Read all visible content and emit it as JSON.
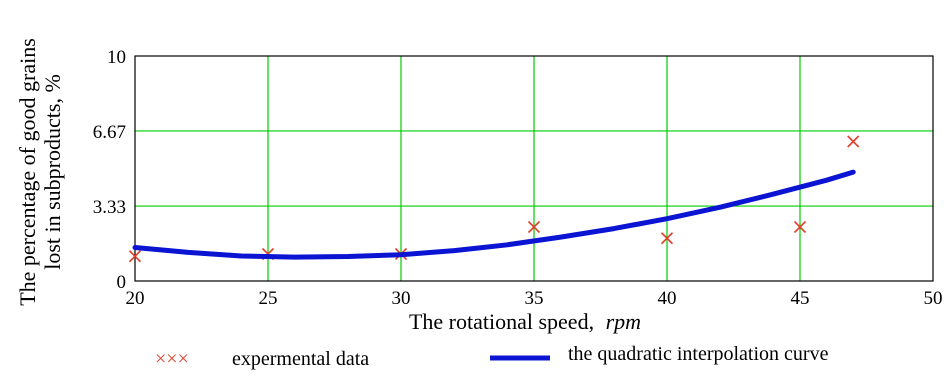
{
  "chart_data": {
    "type": "scatter",
    "xlabel": "The rotational speed,",
    "xlabel_unit": "rpm",
    "ylabel_line1": "The percentage of good grains",
    "ylabel_line2": "lost in subproducts, %",
    "xlim": [
      20,
      50
    ],
    "ylim": [
      0,
      10
    ],
    "x_ticks": [
      "20",
      "25",
      "30",
      "35",
      "40",
      "45",
      "50"
    ],
    "y_ticks": [
      "0",
      "3.33",
      "6.67",
      "10"
    ],
    "grid": true,
    "grid_color": "#00cc00",
    "legend_position": "bottom",
    "series": [
      {
        "name": "expermental data",
        "legend_marker": "×××",
        "kind": "scatter",
        "color": "#e0402a",
        "x": [
          20,
          25,
          30,
          35,
          40,
          45,
          47
        ],
        "y": [
          1.1,
          1.2,
          1.2,
          2.4,
          1.9,
          2.4,
          6.2
        ]
      },
      {
        "name": "the quadratic interpolation curve",
        "kind": "line",
        "color": "#0a14d2",
        "x": [
          20,
          22,
          24,
          26,
          28,
          30,
          32,
          34,
          36,
          38,
          40,
          42,
          44,
          46,
          47
        ],
        "y": [
          1.49,
          1.27,
          1.11,
          1.06,
          1.09,
          1.17,
          1.35,
          1.61,
          1.95,
          2.33,
          2.77,
          3.28,
          3.86,
          4.48,
          4.84
        ]
      }
    ]
  }
}
